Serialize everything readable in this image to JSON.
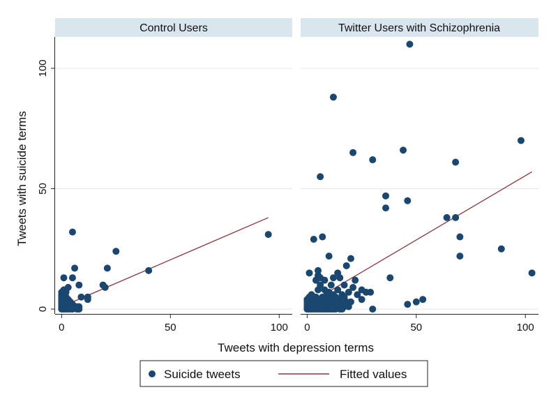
{
  "chart_data": {
    "type": "scatter",
    "xlabel": "Tweets with depression terms",
    "ylabel": "Tweets with suicide terms",
    "xlim": [
      -3,
      106
    ],
    "ylim": [
      -2,
      113
    ],
    "xticks": [
      0,
      50,
      100
    ],
    "yticks": [
      0,
      50,
      100
    ],
    "grid": true,
    "legend": {
      "position": "bottom",
      "entries": [
        {
          "label": "Suicide tweets",
          "kind": "marker"
        },
        {
          "label": "Fitted values",
          "kind": "line"
        }
      ]
    },
    "colors": {
      "points": "#1a476f",
      "fit": "#90353b",
      "strip": "#d9e6ee"
    },
    "panels": [
      {
        "title": "Control Users",
        "points": [
          [
            0,
            0
          ],
          [
            0,
            1
          ],
          [
            0,
            2
          ],
          [
            0,
            3
          ],
          [
            0,
            4
          ],
          [
            0,
            5
          ],
          [
            0,
            6
          ],
          [
            0,
            7
          ],
          [
            1,
            0
          ],
          [
            1,
            1
          ],
          [
            1,
            2
          ],
          [
            1,
            3
          ],
          [
            1,
            4
          ],
          [
            1,
            5
          ],
          [
            1,
            8
          ],
          [
            1,
            13
          ],
          [
            2,
            0
          ],
          [
            2,
            1
          ],
          [
            2,
            2
          ],
          [
            2,
            3
          ],
          [
            2,
            5
          ],
          [
            2,
            7
          ],
          [
            3,
            0
          ],
          [
            3,
            1
          ],
          [
            3,
            2
          ],
          [
            3,
            4
          ],
          [
            3,
            9
          ],
          [
            4,
            0
          ],
          [
            4,
            1
          ],
          [
            4,
            3
          ],
          [
            5,
            0
          ],
          [
            5,
            2
          ],
          [
            5,
            13
          ],
          [
            5,
            32
          ],
          [
            6,
            1
          ],
          [
            6,
            17
          ],
          [
            7,
            0
          ],
          [
            7,
            1
          ],
          [
            8,
            0
          ],
          [
            8,
            1
          ],
          [
            8,
            10
          ],
          [
            9,
            5
          ],
          [
            12,
            4
          ],
          [
            12,
            5
          ],
          [
            19,
            10
          ],
          [
            20,
            9
          ],
          [
            21,
            17
          ],
          [
            25,
            24
          ],
          [
            40,
            16
          ],
          [
            95,
            31
          ]
        ],
        "fit": {
          "x": [
            0,
            95
          ],
          "y": [
            1,
            38
          ]
        }
      },
      {
        "title": "Twitter Users with Schizophrenia",
        "points": [
          [
            0,
            0
          ],
          [
            0,
            1
          ],
          [
            0,
            2
          ],
          [
            0,
            3
          ],
          [
            0,
            4
          ],
          [
            1,
            0
          ],
          [
            1,
            1
          ],
          [
            1,
            2
          ],
          [
            1,
            3
          ],
          [
            1,
            5
          ],
          [
            1,
            15
          ],
          [
            2,
            0
          ],
          [
            2,
            1
          ],
          [
            2,
            2
          ],
          [
            2,
            4
          ],
          [
            2,
            6
          ],
          [
            3,
            0
          ],
          [
            3,
            1
          ],
          [
            3,
            3
          ],
          [
            3,
            29
          ],
          [
            4,
            0
          ],
          [
            4,
            2
          ],
          [
            4,
            5
          ],
          [
            4,
            12
          ],
          [
            5,
            0
          ],
          [
            5,
            1
          ],
          [
            5,
            3
          ],
          [
            5,
            8
          ],
          [
            5,
            14
          ],
          [
            5,
            16
          ],
          [
            6,
            0
          ],
          [
            6,
            2
          ],
          [
            6,
            4
          ],
          [
            6,
            10
          ],
          [
            6,
            13
          ],
          [
            6,
            55
          ],
          [
            7,
            0
          ],
          [
            7,
            1
          ],
          [
            7,
            3
          ],
          [
            7,
            5
          ],
          [
            7,
            30
          ],
          [
            8,
            0
          ],
          [
            8,
            2
          ],
          [
            8,
            4
          ],
          [
            8,
            8
          ],
          [
            8,
            12
          ],
          [
            9,
            0
          ],
          [
            9,
            1
          ],
          [
            9,
            3
          ],
          [
            9,
            6
          ],
          [
            10,
            0
          ],
          [
            10,
            2
          ],
          [
            10,
            4
          ],
          [
            10,
            7
          ],
          [
            10,
            22
          ],
          [
            11,
            0
          ],
          [
            11,
            1
          ],
          [
            11,
            5
          ],
          [
            11,
            10
          ],
          [
            12,
            0
          ],
          [
            12,
            3
          ],
          [
            12,
            6
          ],
          [
            12,
            13
          ],
          [
            12,
            88
          ],
          [
            13,
            0
          ],
          [
            13,
            2
          ],
          [
            13,
            5
          ],
          [
            14,
            1
          ],
          [
            14,
            3
          ],
          [
            14,
            8
          ],
          [
            14,
            15
          ],
          [
            15,
            0
          ],
          [
            15,
            4
          ],
          [
            15,
            13
          ],
          [
            16,
            0
          ],
          [
            16,
            2
          ],
          [
            16,
            6
          ],
          [
            17,
            1
          ],
          [
            17,
            5
          ],
          [
            17,
            10
          ],
          [
            18,
            3
          ],
          [
            18,
            18
          ],
          [
            19,
            1
          ],
          [
            19,
            7
          ],
          [
            20,
            3
          ],
          [
            20,
            21
          ],
          [
            21,
            9
          ],
          [
            21,
            65
          ],
          [
            22,
            12
          ],
          [
            23,
            6
          ],
          [
            25,
            4
          ],
          [
            25,
            8
          ],
          [
            27,
            7
          ],
          [
            29,
            7
          ],
          [
            30,
            0
          ],
          [
            30,
            62
          ],
          [
            36,
            42
          ],
          [
            36,
            47
          ],
          [
            38,
            13
          ],
          [
            44,
            66
          ],
          [
            46,
            2
          ],
          [
            46,
            45
          ],
          [
            47,
            110
          ],
          [
            50,
            3
          ],
          [
            53,
            4
          ],
          [
            64,
            38
          ],
          [
            68,
            38
          ],
          [
            68,
            61
          ],
          [
            70,
            22
          ],
          [
            70,
            30
          ],
          [
            89,
            25
          ],
          [
            98,
            70
          ],
          [
            103,
            15
          ]
        ],
        "fit": {
          "x": [
            0,
            103
          ],
          "y": [
            2,
            57
          ]
        }
      }
    ]
  }
}
